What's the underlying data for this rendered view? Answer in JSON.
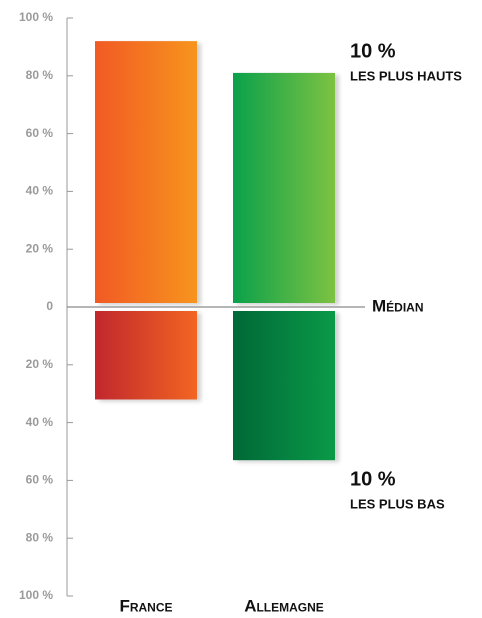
{
  "chart_data": {
    "type": "diverging-bar",
    "categories": [
      "France",
      "Allemagne"
    ],
    "series": [
      {
        "name": "LES PLUS HAUTS",
        "label": "10 %",
        "values": [
          92,
          81
        ],
        "colors": [
          [
            "#f15a24",
            "#f7941d"
          ],
          [
            "#0aa14b",
            "#7dc242"
          ]
        ]
      },
      {
        "name": "LES PLUS BAS",
        "label": "10 %",
        "values": [
          -32,
          -53
        ],
        "colors": [
          [
            "#c1272d",
            "#f26522"
          ],
          [
            "#006837",
            "#0a9a48"
          ]
        ]
      }
    ],
    "median_label": "Médian",
    "ylim": [
      -100,
      100
    ],
    "yticks": [
      {
        "value": -100,
        "label": "100 %"
      },
      {
        "value": -80,
        "label": "80 %"
      },
      {
        "value": -60,
        "label": "60 %"
      },
      {
        "value": -40,
        "label": "40 %"
      },
      {
        "value": -20,
        "label": "20 %"
      },
      0,
      {
        "value": 20,
        "label": "20 %"
      },
      {
        "value": 40,
        "label": "40 %"
      },
      {
        "value": 60,
        "label": "60 %"
      },
      {
        "value": 80,
        "label": "80 %"
      },
      {
        "value": 100,
        "label": "100 %"
      }
    ]
  }
}
